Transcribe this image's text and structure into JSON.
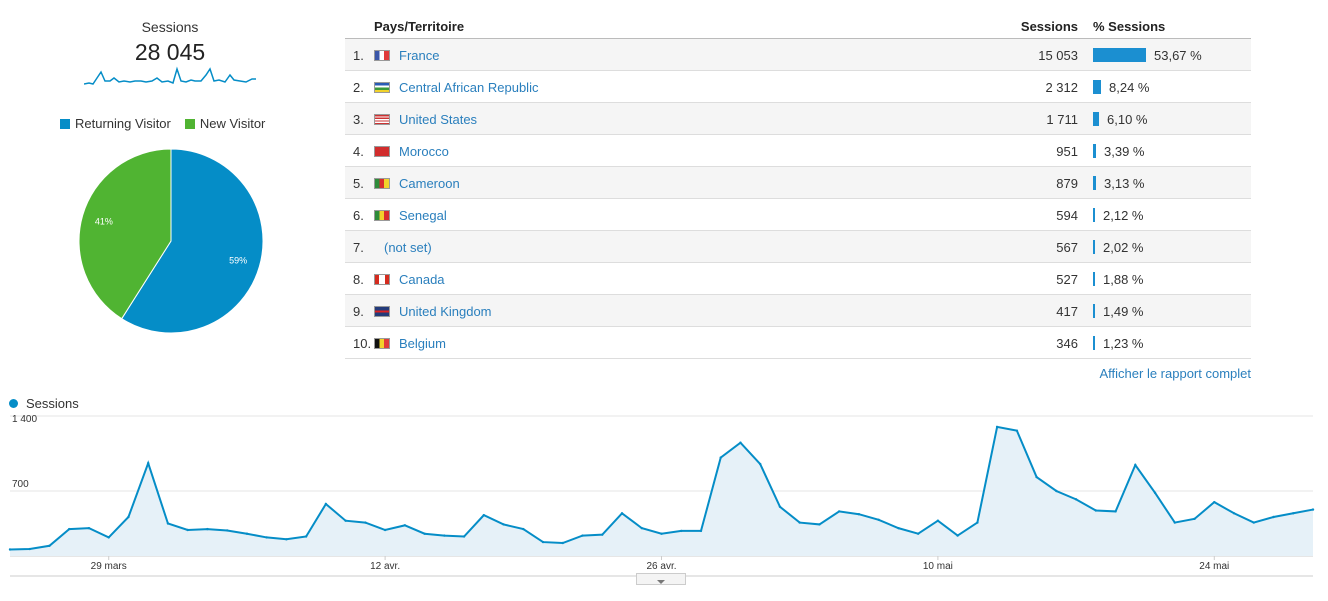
{
  "summary": {
    "sessions_label": "Sessions",
    "sessions_value": "28 045"
  },
  "visitor_pie": {
    "legend": [
      {
        "label": "Returning Visitor",
        "color": "#058dc7"
      },
      {
        "label": "New Visitor",
        "color": "#50b432"
      }
    ],
    "slices": [
      {
        "label": "59%",
        "value": 59,
        "color": "#058dc7"
      },
      {
        "label": "41%",
        "value": 41,
        "color": "#50b432"
      }
    ]
  },
  "table": {
    "headers": {
      "country": "Pays/Territoire",
      "sessions": "Sessions",
      "pct": "% Sessions"
    },
    "rows": [
      {
        "index": "1.",
        "country": "France",
        "flag": "france",
        "sessions": "15 053",
        "pct": "53,67 %",
        "share": 53.67
      },
      {
        "index": "2.",
        "country": "Central African Republic",
        "flag": "central-african-republic",
        "sessions": "2 312",
        "pct": "8,24 %",
        "share": 8.24
      },
      {
        "index": "3.",
        "country": "United States",
        "flag": "united-states",
        "sessions": "1 711",
        "pct": "6,10 %",
        "share": 6.1
      },
      {
        "index": "4.",
        "country": "Morocco",
        "flag": "morocco",
        "sessions": "951",
        "pct": "3,39 %",
        "share": 3.39
      },
      {
        "index": "5.",
        "country": "Cameroon",
        "flag": "cameroon",
        "sessions": "879",
        "pct": "3,13 %",
        "share": 3.13
      },
      {
        "index": "6.",
        "country": "Senegal",
        "flag": "senegal",
        "sessions": "594",
        "pct": "2,12 %",
        "share": 2.12
      },
      {
        "index": "7.",
        "country": "(not set)",
        "flag": "",
        "sessions": "567",
        "pct": "2,02 %",
        "share": 2.02
      },
      {
        "index": "8.",
        "country": "Canada",
        "flag": "canada",
        "sessions": "527",
        "pct": "1,88 %",
        "share": 1.88
      },
      {
        "index": "9.",
        "country": "United Kingdom",
        "flag": "united-kingdom",
        "sessions": "417",
        "pct": "1,49 %",
        "share": 1.49
      },
      {
        "index": "10.",
        "country": "Belgium",
        "flag": "belgium",
        "sessions": "346",
        "pct": "1,23 %",
        "share": 1.23
      }
    ],
    "full_report_link": "Afficher le rapport complet"
  },
  "colors": {
    "accent": "#058dc7",
    "link": "#2a7fbd",
    "new_visitor": "#50b432"
  },
  "chart_data": {
    "type": "area",
    "legend": "Sessions",
    "y_ticks": [
      "1 400",
      "700"
    ],
    "ylim": [
      0,
      1400
    ],
    "x_labels": [
      {
        "label": "29 mars",
        "index": 5
      },
      {
        "label": "12 avr.",
        "index": 19
      },
      {
        "label": "26 avr.",
        "index": 33
      },
      {
        "label": "10 mai",
        "index": 47
      },
      {
        "label": "24 mai",
        "index": 61
      }
    ],
    "values": [
      70,
      75,
      110,
      290,
      300,
      200,
      420,
      1000,
      350,
      280,
      290,
      275,
      240,
      200,
      180,
      210,
      560,
      380,
      360,
      280,
      330,
      240,
      220,
      210,
      440,
      340,
      290,
      150,
      140,
      220,
      230,
      460,
      300,
      240,
      270,
      270,
      1060,
      1220,
      990,
      530,
      360,
      340,
      480,
      450,
      390,
      300,
      240,
      380,
      220,
      360,
      1390,
      1350,
      850,
      700,
      610,
      490,
      480,
      980,
      680,
      360,
      400,
      580,
      460,
      360,
      420,
      460,
      500
    ]
  }
}
